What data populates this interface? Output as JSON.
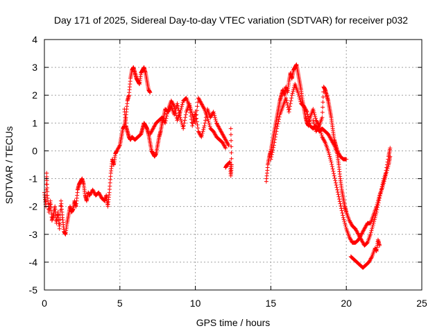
{
  "chart_data": {
    "type": "scatter",
    "title": "Day 171 of 2025, Sidereal Day-to-day VTEC variation (SDTVAR) for receiver p032",
    "xlabel": "GPS time / hours",
    "ylabel": "SDTVAR / TECUs",
    "xlim": [
      0,
      25
    ],
    "ylim": [
      -5,
      4
    ],
    "xticks": [
      0,
      5,
      10,
      15,
      20,
      25
    ],
    "yticks": [
      -5,
      -4,
      -3,
      -2,
      -1,
      0,
      1,
      2,
      3,
      4
    ],
    "grid": true,
    "marker": "+",
    "series": [
      {
        "name": "SDTVAR",
        "color": "#ff0000",
        "segments": [
          [
            [
              0.0,
              -1.5
            ],
            [
              0.1,
              -2.0
            ],
            [
              0.15,
              -0.8
            ],
            [
              0.2,
              -1.6
            ],
            [
              0.3,
              -2.2
            ],
            [
              0.4,
              -1.8
            ],
            [
              0.5,
              -2.5
            ],
            [
              0.6,
              -2.3
            ],
            [
              0.7,
              -2.0
            ],
            [
              0.8,
              -2.6
            ],
            [
              0.9,
              -2.2
            ],
            [
              1.0,
              -2.8
            ],
            [
              1.1,
              -1.8
            ],
            [
              1.2,
              -2.4
            ],
            [
              1.3,
              -2.9
            ],
            [
              1.4,
              -3.0
            ],
            [
              1.5,
              -2.6
            ],
            [
              1.6,
              -2.3
            ],
            [
              1.7,
              -2.0
            ],
            [
              1.8,
              -2.2
            ],
            [
              1.9,
              -2.1
            ],
            [
              2.0,
              -1.8
            ],
            [
              2.1,
              -2.0
            ],
            [
              2.2,
              -1.4
            ],
            [
              2.3,
              -1.2
            ],
            [
              2.4,
              -1.1
            ],
            [
              2.5,
              -1.0
            ],
            [
              2.6,
              -1.2
            ],
            [
              2.7,
              -1.6
            ],
            [
              2.8,
              -1.8
            ],
            [
              2.9,
              -1.5
            ],
            [
              3.0,
              -1.6
            ],
            [
              3.2,
              -1.4
            ],
            [
              3.4,
              -1.6
            ],
            [
              3.6,
              -1.5
            ],
            [
              3.8,
              -1.7
            ],
            [
              4.0,
              -1.8
            ],
            [
              4.1,
              -1.6
            ],
            [
              4.2,
              -2.0
            ],
            [
              4.3,
              -1.5
            ],
            [
              4.4,
              -0.8
            ],
            [
              4.5,
              -0.3
            ],
            [
              4.6,
              -0.5
            ],
            [
              4.7,
              -0.1
            ],
            [
              4.8,
              0.0
            ],
            [
              5.0,
              0.2
            ],
            [
              5.1,
              0.5
            ],
            [
              5.2,
              0.8
            ],
            [
              5.3,
              0.9
            ],
            [
              5.4,
              1.2
            ],
            [
              5.5,
              1.8
            ],
            [
              5.6,
              2.0
            ],
            [
              5.7,
              2.6
            ],
            [
              5.8,
              2.9
            ],
            [
              5.9,
              3.0
            ],
            [
              6.0,
              2.8
            ],
            [
              6.1,
              2.6
            ],
            [
              6.2,
              2.5
            ],
            [
              6.3,
              2.4
            ],
            [
              6.4,
              2.8
            ],
            [
              6.5,
              2.9
            ],
            [
              6.6,
              3.0
            ],
            [
              6.7,
              2.8
            ],
            [
              6.8,
              2.5
            ],
            [
              6.9,
              2.2
            ],
            [
              7.0,
              2.1
            ]
          ],
          [
            [
              5.3,
              1.5
            ],
            [
              5.4,
              0.9
            ],
            [
              5.5,
              0.7
            ],
            [
              5.6,
              0.5
            ],
            [
              5.7,
              0.4
            ],
            [
              5.8,
              0.5
            ],
            [
              6.0,
              0.4
            ],
            [
              6.2,
              0.5
            ],
            [
              6.4,
              0.6
            ],
            [
              6.5,
              0.8
            ],
            [
              6.6,
              1.0
            ],
            [
              6.7,
              0.9
            ],
            [
              6.8,
              0.8
            ],
            [
              6.9,
              0.6
            ],
            [
              7.0,
              0.3
            ],
            [
              7.1,
              0.0
            ],
            [
              7.2,
              -0.1
            ],
            [
              7.3,
              -0.2
            ],
            [
              7.4,
              -0.1
            ],
            [
              7.5,
              0.2
            ],
            [
              7.6,
              0.5
            ],
            [
              7.7,
              0.7
            ],
            [
              7.8,
              1.0
            ],
            [
              7.9,
              1.2
            ],
            [
              8.0,
              1.5
            ],
            [
              8.2,
              1.4
            ],
            [
              8.4,
              1.6
            ],
            [
              8.6,
              1.3
            ],
            [
              8.8,
              1.7
            ],
            [
              9.0,
              1.2
            ],
            [
              9.2,
              0.8
            ],
            [
              9.4,
              1.4
            ],
            [
              9.6,
              1.7
            ],
            [
              9.8,
              1.3
            ],
            [
              10.0,
              1.0
            ],
            [
              10.2,
              1.9
            ],
            [
              10.4,
              1.7
            ],
            [
              10.6,
              1.5
            ],
            [
              10.8,
              1.2
            ],
            [
              11.0,
              0.8
            ],
            [
              11.2,
              0.7
            ],
            [
              11.4,
              0.5
            ],
            [
              11.6,
              0.4
            ],
            [
              11.8,
              0.3
            ],
            [
              12.0,
              0.1
            ]
          ],
          [
            [
              7.0,
              0.6
            ],
            [
              7.2,
              0.8
            ],
            [
              7.4,
              1.0
            ],
            [
              7.6,
              1.1
            ],
            [
              7.8,
              1.2
            ],
            [
              8.0,
              1.0
            ],
            [
              8.2,
              1.5
            ],
            [
              8.4,
              1.8
            ],
            [
              8.6,
              1.6
            ],
            [
              8.8,
              1.1
            ],
            [
              9.0,
              1.4
            ],
            [
              9.2,
              1.8
            ],
            [
              9.4,
              1.9
            ],
            [
              9.6,
              1.6
            ],
            [
              9.8,
              0.9
            ],
            [
              10.0,
              1.4
            ],
            [
              10.2,
              0.7
            ],
            [
              10.4,
              0.5
            ],
            [
              10.6,
              0.9
            ],
            [
              10.8,
              1.5
            ],
            [
              11.0,
              1.2
            ],
            [
              11.2,
              1.4
            ],
            [
              11.4,
              1.0
            ],
            [
              11.6,
              0.8
            ],
            [
              11.8,
              0.6
            ],
            [
              12.0,
              0.4
            ],
            [
              12.2,
              0.2
            ]
          ],
          [
            [
              12.0,
              -0.6
            ],
            [
              12.1,
              -0.5
            ],
            [
              12.3,
              -0.4
            ],
            [
              12.35,
              -0.9
            ],
            [
              12.4,
              -0.5
            ],
            [
              12.35,
              0.8
            ]
          ],
          [
            [
              14.7,
              -1.1
            ],
            [
              14.8,
              -0.5
            ],
            [
              14.9,
              -0.2
            ],
            [
              15.0,
              0.0
            ],
            [
              15.1,
              0.3
            ],
            [
              15.2,
              0.6
            ],
            [
              15.3,
              0.9
            ],
            [
              15.4,
              1.2
            ],
            [
              15.5,
              1.5
            ],
            [
              15.6,
              1.8
            ],
            [
              15.7,
              2.0
            ],
            [
              15.8,
              2.2
            ],
            [
              15.9,
              2.0
            ],
            [
              16.0,
              2.3
            ],
            [
              16.1,
              2.1
            ],
            [
              16.2,
              2.5
            ],
            [
              16.3,
              2.8
            ],
            [
              16.4,
              2.6
            ],
            [
              16.5,
              2.9
            ],
            [
              16.6,
              3.0
            ],
            [
              16.7,
              3.1
            ],
            [
              16.8,
              2.8
            ],
            [
              16.9,
              2.5
            ],
            [
              17.0,
              2.2
            ],
            [
              17.1,
              1.8
            ],
            [
              17.2,
              1.5
            ],
            [
              17.3,
              1.2
            ],
            [
              17.4,
              1.0
            ],
            [
              17.5,
              0.9
            ],
            [
              17.6,
              1.2
            ],
            [
              17.8,
              1.5
            ],
            [
              18.0,
              1.1
            ],
            [
              18.2,
              0.9
            ],
            [
              18.4,
              1.2
            ],
            [
              18.5,
              2.3
            ],
            [
              18.6,
              2.2
            ],
            [
              18.7,
              2.0
            ],
            [
              18.8,
              1.8
            ],
            [
              18.9,
              1.5
            ],
            [
              19.0,
              1.2
            ],
            [
              19.1,
              0.8
            ],
            [
              19.2,
              0.4
            ],
            [
              19.3,
              0.2
            ],
            [
              19.4,
              0.0
            ],
            [
              19.6,
              -0.2
            ],
            [
              19.8,
              -0.3
            ],
            [
              20.0,
              -0.3
            ]
          ],
          [
            [
              15.0,
              -0.3
            ],
            [
              15.2,
              0.2
            ],
            [
              15.4,
              0.8
            ],
            [
              15.6,
              1.3
            ],
            [
              15.8,
              1.6
            ],
            [
              16.0,
              1.9
            ],
            [
              16.2,
              1.4
            ],
            [
              16.4,
              2.0
            ],
            [
              16.6,
              2.4
            ],
            [
              16.8,
              2.1
            ],
            [
              17.0,
              1.7
            ],
            [
              17.2,
              1.6
            ],
            [
              17.4,
              1.4
            ],
            [
              17.6,
              0.9
            ],
            [
              17.8,
              0.8
            ],
            [
              18.0,
              0.9
            ],
            [
              18.2,
              0.7
            ],
            [
              18.4,
              0.8
            ],
            [
              18.6,
              0.7
            ],
            [
              18.8,
              0.6
            ],
            [
              19.0,
              0.4
            ],
            [
              19.2,
              0.2
            ],
            [
              19.4,
              -0.1
            ],
            [
              19.5,
              -0.5
            ],
            [
              19.6,
              -1.0
            ],
            [
              19.7,
              -1.4
            ],
            [
              19.8,
              -1.7
            ],
            [
              19.9,
              -2.0
            ],
            [
              20.0,
              -2.2
            ],
            [
              20.2,
              -2.5
            ],
            [
              20.4,
              -2.7
            ],
            [
              20.6,
              -2.8
            ],
            [
              20.8,
              -3.0
            ],
            [
              21.0,
              -3.2
            ],
            [
              21.2,
              -3.4
            ],
            [
              21.4,
              -3.3
            ],
            [
              21.6,
              -3.0
            ],
            [
              21.8,
              -2.6
            ],
            [
              22.0,
              -2.2
            ],
            [
              22.2,
              -1.7
            ],
            [
              22.4,
              -1.2
            ],
            [
              22.6,
              -0.8
            ],
            [
              22.8,
              -0.2
            ],
            [
              22.9,
              0.1
            ]
          ],
          [
            [
              17.8,
              1.1
            ],
            [
              18.0,
              0.7
            ],
            [
              18.2,
              0.9
            ],
            [
              18.4,
              0.5
            ],
            [
              18.6,
              0.3
            ],
            [
              18.8,
              0.0
            ],
            [
              19.0,
              -0.4
            ],
            [
              19.2,
              -0.9
            ],
            [
              19.4,
              -1.4
            ],
            [
              19.6,
              -1.9
            ],
            [
              19.8,
              -2.4
            ],
            [
              20.0,
              -2.8
            ],
            [
              20.2,
              -3.1
            ],
            [
              20.4,
              -3.3
            ],
            [
              20.6,
              -3.3
            ],
            [
              20.8,
              -3.2
            ],
            [
              21.0,
              -3.0
            ],
            [
              21.2,
              -2.8
            ],
            [
              21.4,
              -2.6
            ],
            [
              21.6,
              -2.6
            ],
            [
              21.8,
              -2.3
            ],
            [
              22.0,
              -2.0
            ],
            [
              22.2,
              -1.6
            ],
            [
              22.4,
              -1.3
            ],
            [
              22.6,
              -0.9
            ],
            [
              22.8,
              -0.5
            ],
            [
              22.9,
              -0.2
            ]
          ],
          [
            [
              20.3,
              -3.8
            ],
            [
              20.5,
              -3.9
            ],
            [
              20.7,
              -4.0
            ],
            [
              20.9,
              -4.1
            ],
            [
              21.1,
              -4.2
            ],
            [
              21.3,
              -4.1
            ],
            [
              21.5,
              -4.0
            ],
            [
              21.7,
              -3.8
            ],
            [
              21.9,
              -3.5
            ],
            [
              22.0,
              -3.6
            ],
            [
              22.1,
              -3.2
            ],
            [
              22.2,
              -3.4
            ]
          ]
        ]
      }
    ]
  }
}
